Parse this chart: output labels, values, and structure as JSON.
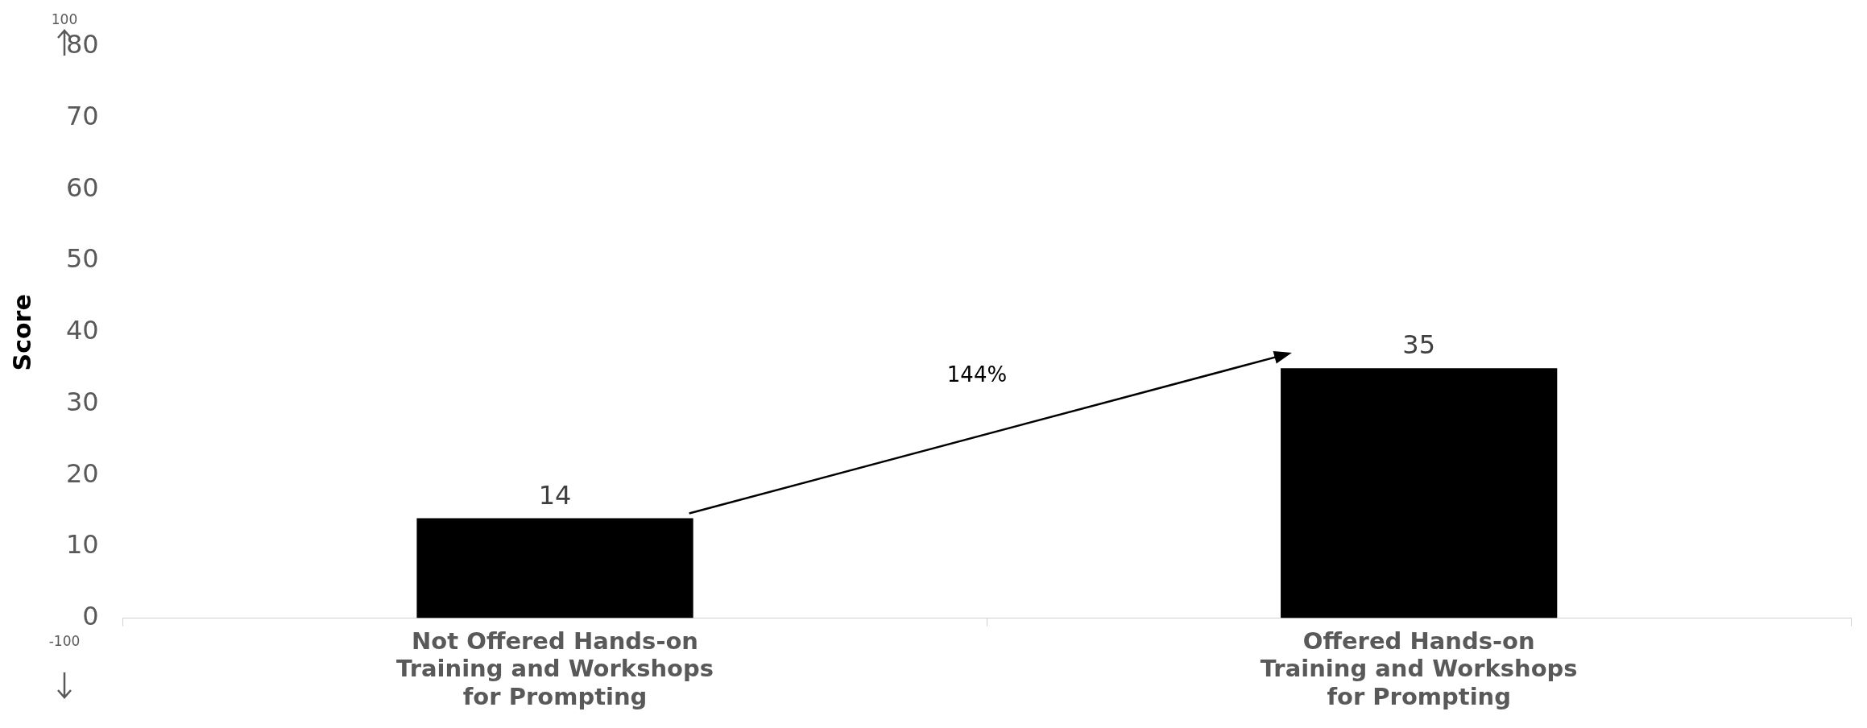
{
  "chart_data": {
    "type": "bar",
    "ylabel": "Score",
    "categories": [
      "Not Offered Hands-on Training and Workshops for Prompting",
      "Offered Hands-on Training and Workshops for Prompting"
    ],
    "values": [
      14,
      35
    ],
    "color": "#000000",
    "data_labels": true,
    "ylim": [
      0,
      80
    ],
    "yticks": [
      0,
      10,
      20,
      30,
      40,
      50,
      60,
      70,
      80
    ],
    "grid": false,
    "legend": false,
    "annotations": [
      "100",
      "-100",
      "144%"
    ]
  }
}
